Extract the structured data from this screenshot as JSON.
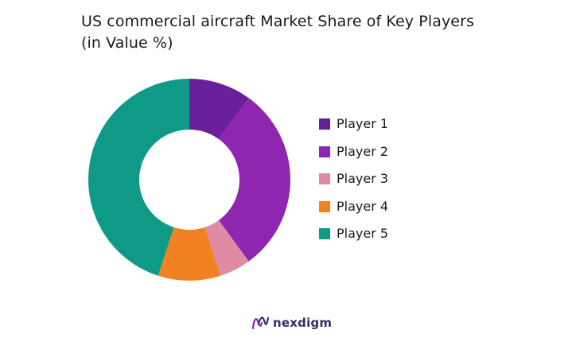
{
  "chart_data": {
    "type": "pie",
    "title": "US commercial aircraft Market Share of Key Players",
    "subtitle": "(in Value %)",
    "categories": [
      "Player 1",
      "Player 2",
      "Player 3",
      "Player 4",
      "Player 5"
    ],
    "values": [
      10,
      30,
      5,
      10,
      45
    ],
    "colors": [
      "#6a1f9a",
      "#8e26b0",
      "#de8ba3",
      "#f28122",
      "#0f9a88"
    ],
    "legend_position": "right",
    "donut": true
  },
  "brand": {
    "name": "nexdigm",
    "icon": "nexdigm-logo-icon",
    "color": "#3d2a6b",
    "icon_colors": [
      "#8e26b0",
      "#3d2a6b"
    ]
  }
}
